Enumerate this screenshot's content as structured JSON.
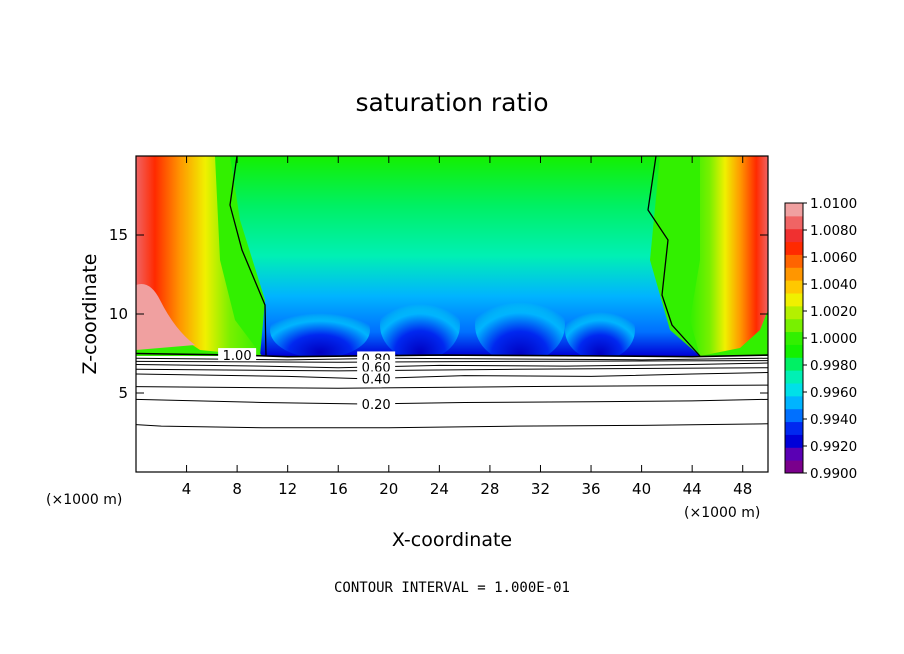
{
  "chart_data": {
    "type": "heatmap",
    "title": "saturation ratio",
    "xlabel": "X-coordinate",
    "ylabel": "Z-coordinate",
    "x_unit": "(×1000 m)",
    "y_unit": "(×1000 m)",
    "xlim": [
      0,
      50
    ],
    "ylim": [
      0,
      20
    ],
    "x_ticks": [
      4,
      8,
      12,
      16,
      20,
      24,
      28,
      32,
      36,
      40,
      44,
      48
    ],
    "y_ticks": [
      5,
      10,
      15
    ],
    "colorbar": {
      "min": 0.99,
      "max": 1.01,
      "labels": [
        "1.0100",
        "1.0080",
        "1.0060",
        "1.0040",
        "1.0020",
        "1.0000",
        "0.9980",
        "0.9960",
        "0.9940",
        "0.9920",
        "0.9900"
      ],
      "colors": [
        "#7a008c",
        "#5a00b4",
        "#0000d8",
        "#0028f0",
        "#0070ff",
        "#00b4ff",
        "#00e0e8",
        "#00f0b4",
        "#00f064",
        "#14f000",
        "#32f000",
        "#78f000",
        "#b4f000",
        "#f0f000",
        "#ffc800",
        "#ff9600",
        "#ff6400",
        "#ff2a00",
        "#f03030",
        "#f06464",
        "#f0a0a0"
      ]
    },
    "contours": [
      {
        "label": "1.00",
        "z": [
          [
            0,
            7.5
          ],
          [
            8,
            7.4
          ],
          [
            10,
            7.35
          ],
          [
            12,
            7.3
          ],
          [
            24,
            7.4
          ],
          [
            36,
            7.35
          ],
          [
            44,
            7.3
          ],
          [
            50,
            7.4
          ]
        ]
      },
      {
        "label": "0.80",
        "z": [
          [
            0,
            7.2
          ],
          [
            12,
            7.1
          ],
          [
            20,
            7.2
          ],
          [
            30,
            7.15
          ],
          [
            40,
            7.1
          ],
          [
            50,
            7.2
          ]
        ]
      },
      {
        "label": "0.60",
        "z": [
          [
            0,
            6.8
          ],
          [
            10,
            6.7
          ],
          [
            16,
            6.6
          ],
          [
            24,
            6.75
          ],
          [
            34,
            6.7
          ],
          [
            44,
            6.8
          ],
          [
            50,
            6.9
          ]
        ]
      },
      {
        "label": "0.40",
        "z": [
          [
            0,
            6.2
          ],
          [
            12,
            6.05
          ],
          [
            18,
            5.9
          ],
          [
            26,
            6.1
          ],
          [
            36,
            6.05
          ],
          [
            44,
            6.2
          ],
          [
            50,
            6.3
          ]
        ]
      },
      {
        "label": "0.20",
        "z": [
          [
            0,
            4.6
          ],
          [
            10,
            4.4
          ],
          [
            18,
            4.3
          ],
          [
            26,
            4.4
          ],
          [
            36,
            4.45
          ],
          [
            44,
            4.5
          ],
          [
            50,
            4.6
          ]
        ]
      },
      {
        "label": "",
        "z": [
          [
            0,
            3.0
          ],
          [
            2,
            2.9
          ],
          [
            10,
            2.8
          ],
          [
            20,
            2.8
          ],
          [
            30,
            2.9
          ],
          [
            40,
            2.95
          ],
          [
            50,
            3.05
          ]
        ]
      },
      {
        "label": "",
        "z": [
          [
            0,
            5.4
          ],
          [
            16,
            5.3
          ],
          [
            30,
            5.4
          ],
          [
            50,
            5.5
          ]
        ]
      },
      {
        "label": "",
        "z": [
          [
            0,
            6.5
          ],
          [
            16,
            6.4
          ],
          [
            30,
            6.5
          ],
          [
            50,
            6.6
          ]
        ]
      },
      {
        "label": "",
        "z": [
          [
            0,
            7.0
          ],
          [
            16,
            6.95
          ],
          [
            30,
            7.0
          ],
          [
            50,
            7.05
          ]
        ]
      }
    ],
    "contour_interval_text": "CONTOUR INTERVAL = 1.000E-01"
  }
}
